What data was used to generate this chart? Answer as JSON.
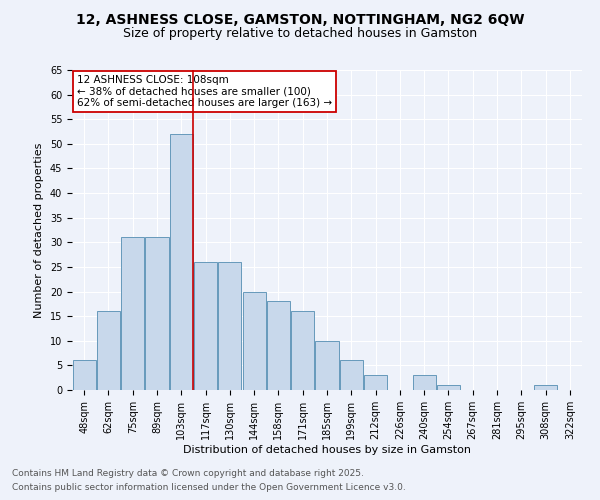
{
  "title": "12, ASHNESS CLOSE, GAMSTON, NOTTINGHAM, NG2 6QW",
  "subtitle": "Size of property relative to detached houses in Gamston",
  "xlabel": "Distribution of detached houses by size in Gamston",
  "ylabel": "Number of detached properties",
  "bar_color": "#c8d8eb",
  "bar_edgecolor": "#6699bb",
  "background_color": "#eef2fa",
  "grid_color": "#ffffff",
  "categories": [
    "48sqm",
    "62sqm",
    "75sqm",
    "89sqm",
    "103sqm",
    "117sqm",
    "130sqm",
    "144sqm",
    "158sqm",
    "171sqm",
    "185sqm",
    "199sqm",
    "212sqm",
    "226sqm",
    "240sqm",
    "254sqm",
    "267sqm",
    "281sqm",
    "295sqm",
    "308sqm",
    "322sqm"
  ],
  "values": [
    6,
    16,
    31,
    31,
    52,
    26,
    26,
    20,
    18,
    16,
    10,
    6,
    3,
    0,
    3,
    1,
    0,
    0,
    0,
    1,
    0
  ],
  "ylim": [
    0,
    65
  ],
  "yticks": [
    0,
    5,
    10,
    15,
    20,
    25,
    30,
    35,
    40,
    45,
    50,
    55,
    60,
    65
  ],
  "vline_x": 4.5,
  "vline_color": "#cc0000",
  "annotation_text": "12 ASHNESS CLOSE: 108sqm\n← 38% of detached houses are smaller (100)\n62% of semi-detached houses are larger (163) →",
  "footer1": "Contains HM Land Registry data © Crown copyright and database right 2025.",
  "footer2": "Contains public sector information licensed under the Open Government Licence v3.0.",
  "title_fontsize": 10,
  "subtitle_fontsize": 9,
  "axis_label_fontsize": 8,
  "tick_fontsize": 7,
  "annotation_fontsize": 7.5,
  "footer_fontsize": 6.5
}
